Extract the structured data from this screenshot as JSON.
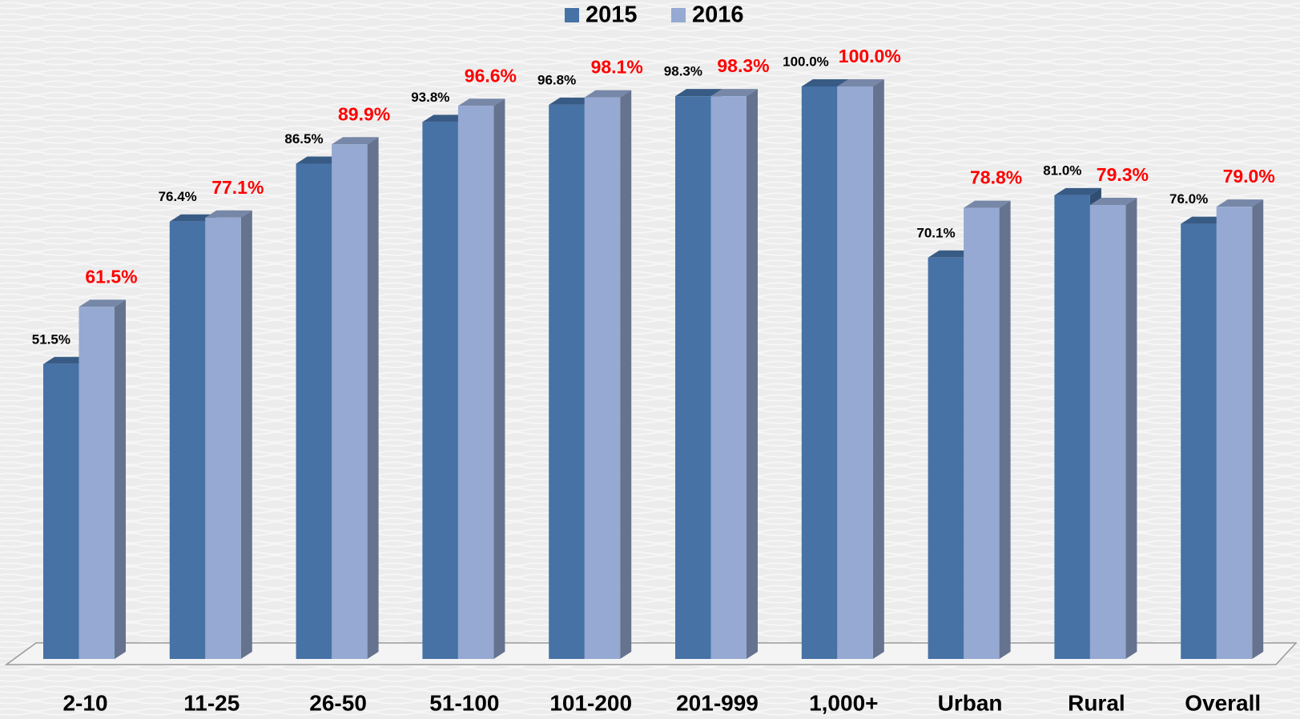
{
  "chart_data": {
    "type": "bar3d",
    "categories": [
      "2-10",
      "11-25",
      "26-50",
      "51-100",
      "101-200",
      "201-999",
      "1,000+",
      "Urban",
      "Rural",
      "Overall"
    ],
    "series": [
      {
        "name": "2015",
        "color": "#4672a6",
        "label_color": "#000000",
        "values": [
          51.5,
          76.4,
          86.5,
          93.8,
          96.8,
          98.3,
          100.0,
          70.1,
          81.0,
          76.0
        ],
        "value_labels": [
          "51.5%",
          "76.4%",
          "86.5%",
          "93.8%",
          "96.8%",
          "98.3%",
          "100.0%",
          "70.1%",
          "81.0%",
          "76.0%"
        ]
      },
      {
        "name": "2016",
        "color": "#95a9d2",
        "label_color": "#ff0000",
        "values": [
          61.5,
          77.1,
          89.9,
          96.6,
          98.1,
          98.3,
          100.0,
          78.8,
          79.3,
          79.0
        ],
        "value_labels": [
          "61.5%",
          "77.1%",
          "89.9%",
          "96.6%",
          "98.1%",
          "98.3%",
          "100.0%",
          "78.8%",
          "79.3%",
          "79.0%"
        ]
      }
    ],
    "legend": "top"
  }
}
